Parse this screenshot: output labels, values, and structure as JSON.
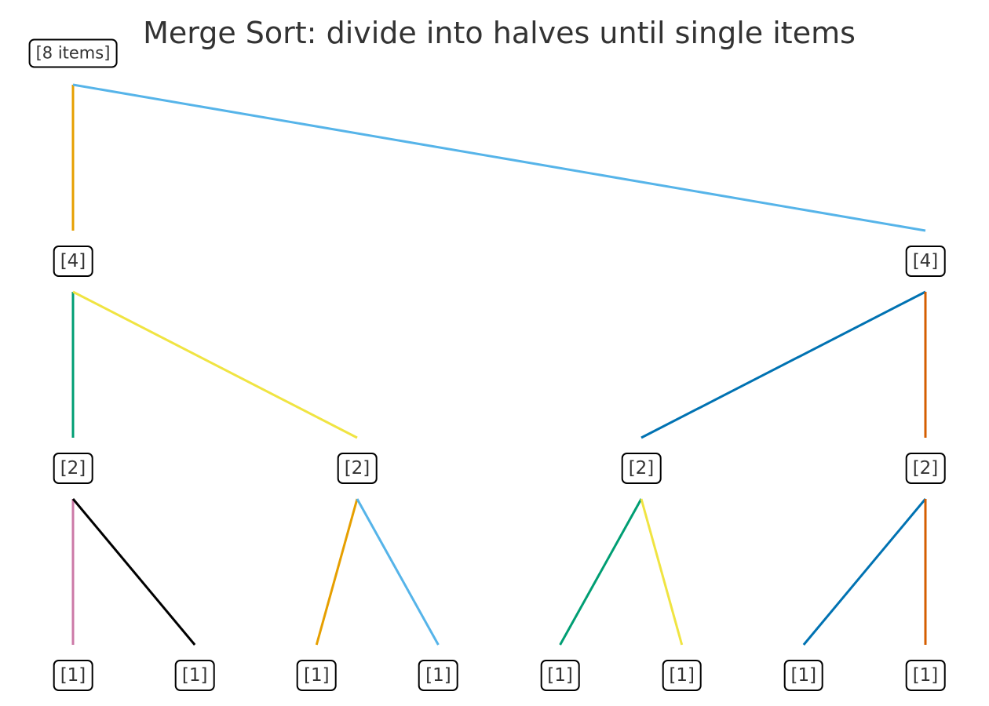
{
  "title": "Merge Sort: divide into halves until single items",
  "tree": {
    "root": {
      "label": "[8 items]"
    },
    "level1": [
      {
        "label": "[4]"
      },
      {
        "label": "[4]"
      }
    ],
    "level2": [
      {
        "label": "[2]"
      },
      {
        "label": "[2]"
      },
      {
        "label": "[2]"
      },
      {
        "label": "[2]"
      }
    ],
    "level3": [
      {
        "label": "[1]"
      },
      {
        "label": "[1]"
      },
      {
        "label": "[1]"
      },
      {
        "label": "[1]"
      },
      {
        "label": "[1]"
      },
      {
        "label": "[1]"
      },
      {
        "label": "[1]"
      },
      {
        "label": "[1]"
      }
    ]
  },
  "edges": [
    {
      "from": "root",
      "to": "level1-0",
      "color": "#E69F00"
    },
    {
      "from": "root",
      "to": "level1-1",
      "color": "#56B4E9"
    },
    {
      "from": "level1-0",
      "to": "level2-0",
      "color": "#009E73"
    },
    {
      "from": "level1-0",
      "to": "level2-1",
      "color": "#F0E442"
    },
    {
      "from": "level1-1",
      "to": "level2-2",
      "color": "#0072B2"
    },
    {
      "from": "level1-1",
      "to": "level2-3",
      "color": "#D55E00"
    },
    {
      "from": "level2-0",
      "to": "level3-0",
      "color": "#CC79A7"
    },
    {
      "from": "level2-0",
      "to": "level3-1",
      "color": "#000000"
    },
    {
      "from": "level2-1",
      "to": "level3-2",
      "color": "#E69F00"
    },
    {
      "from": "level2-1",
      "to": "level3-3",
      "color": "#56B4E9"
    },
    {
      "from": "level2-2",
      "to": "level3-4",
      "color": "#009E73"
    },
    {
      "from": "level2-2",
      "to": "level3-5",
      "color": "#F0E442"
    },
    {
      "from": "level2-3",
      "to": "level3-6",
      "color": "#0072B2"
    },
    {
      "from": "level2-3",
      "to": "level3-7",
      "color": "#D55E00"
    }
  ]
}
